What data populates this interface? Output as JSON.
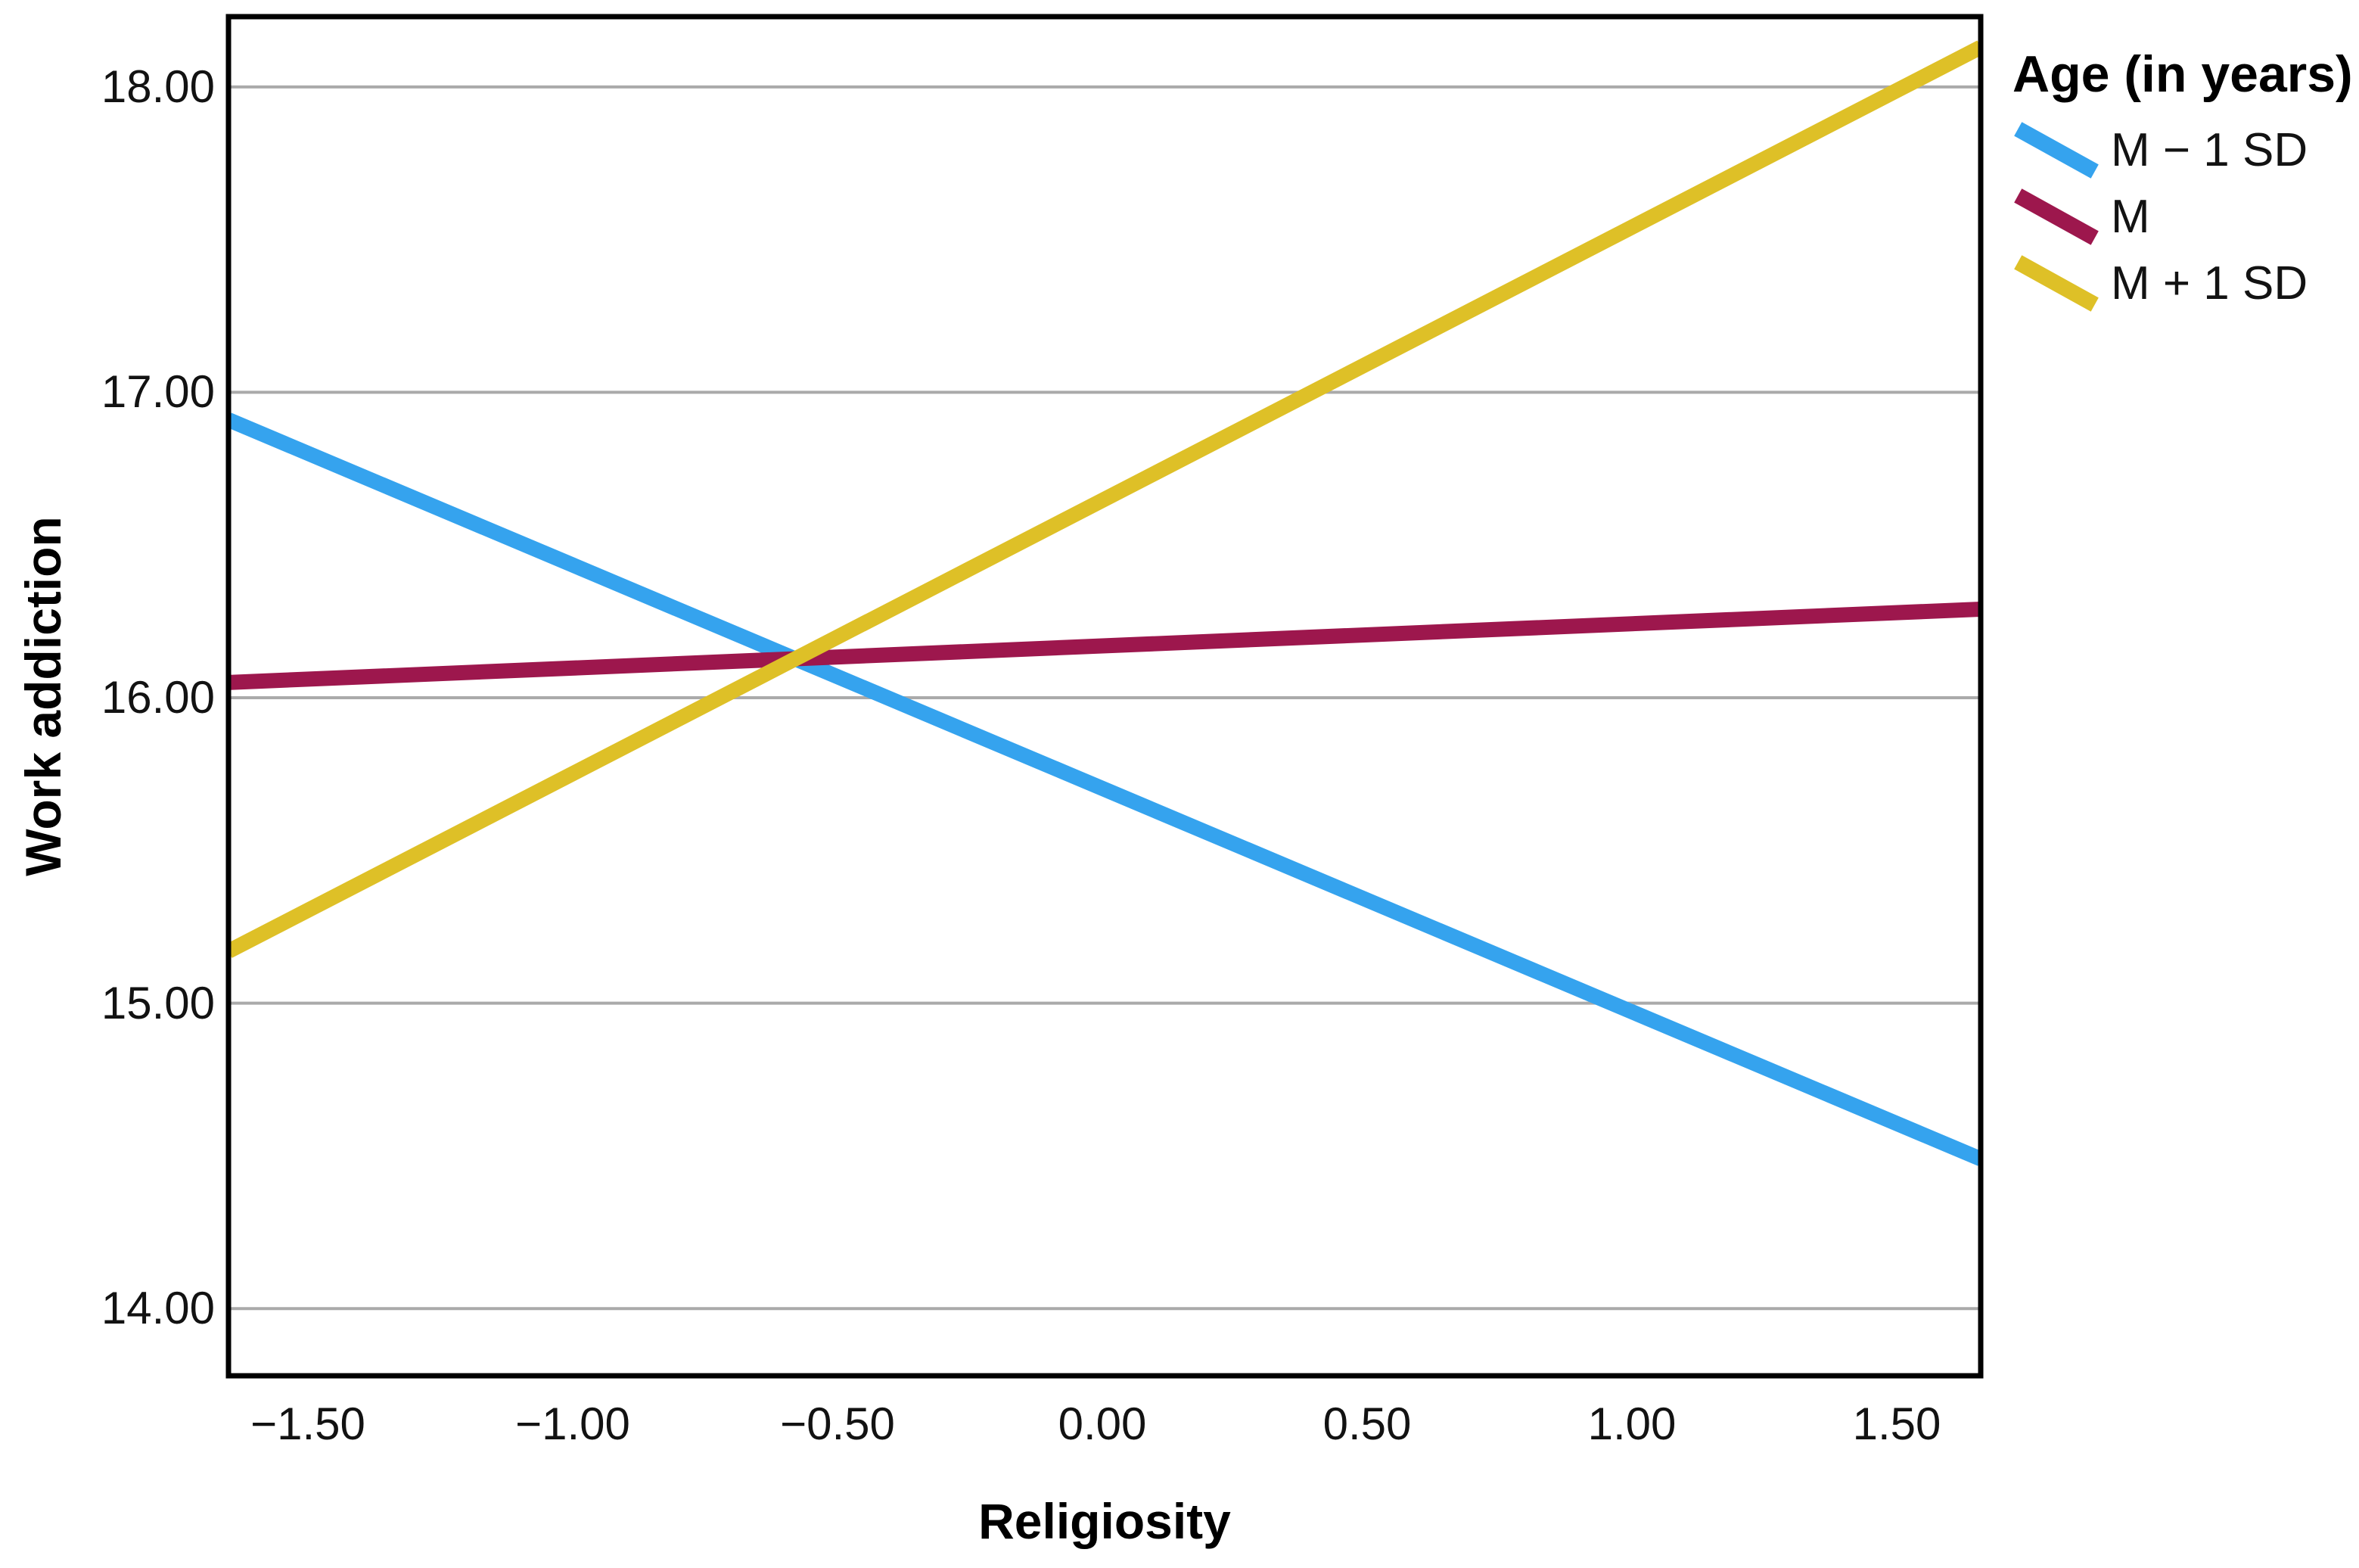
{
  "chart_data": {
    "type": "line",
    "title": "",
    "xlabel": "Religiosity",
    "ylabel": "Work addiction",
    "xlim": [
      -1.65,
      1.66
    ],
    "ylim": [
      13.78,
      18.23
    ],
    "x_ticks": [
      -1.5,
      -1.0,
      -0.5,
      0.0,
      0.5,
      1.0,
      1.5
    ],
    "x_tick_labels": [
      "−1.50",
      "−1.00",
      "−0.50",
      "0.00",
      "0.50",
      "1.00",
      "1.50"
    ],
    "y_ticks": [
      18,
      17,
      16,
      15,
      14
    ],
    "y_tick_labels": [
      "18.00",
      "17.00",
      "16.00",
      "15.00",
      "14.00"
    ],
    "grid": "horizontal-only",
    "gridline_color": "#AAAAAA",
    "frame_color": "#000000",
    "background_color": "#FFFFFF",
    "legend": {
      "title": "Age (in years)",
      "position": "outside-top-right",
      "items": [
        {
          "label": "M − 1 SD",
          "color": "#35A3EE"
        },
        {
          "label": "M",
          "color": "#9D174D"
        },
        {
          "label": "M + 1 SD",
          "color": "#DEC027"
        }
      ]
    },
    "series": [
      {
        "name": "M − 1 SD",
        "color": "#35A3EE",
        "x": [
          -1.65,
          1.66
        ],
        "y": [
          16.91,
          14.49
        ]
      },
      {
        "name": "M",
        "color": "#9D174D",
        "x": [
          -1.65,
          1.66
        ],
        "y": [
          16.05,
          16.29
        ]
      },
      {
        "name": "M + 1 SD",
        "color": "#DEC027",
        "x": [
          -1.65,
          1.66
        ],
        "y": [
          15.17,
          18.13
        ]
      }
    ]
  }
}
